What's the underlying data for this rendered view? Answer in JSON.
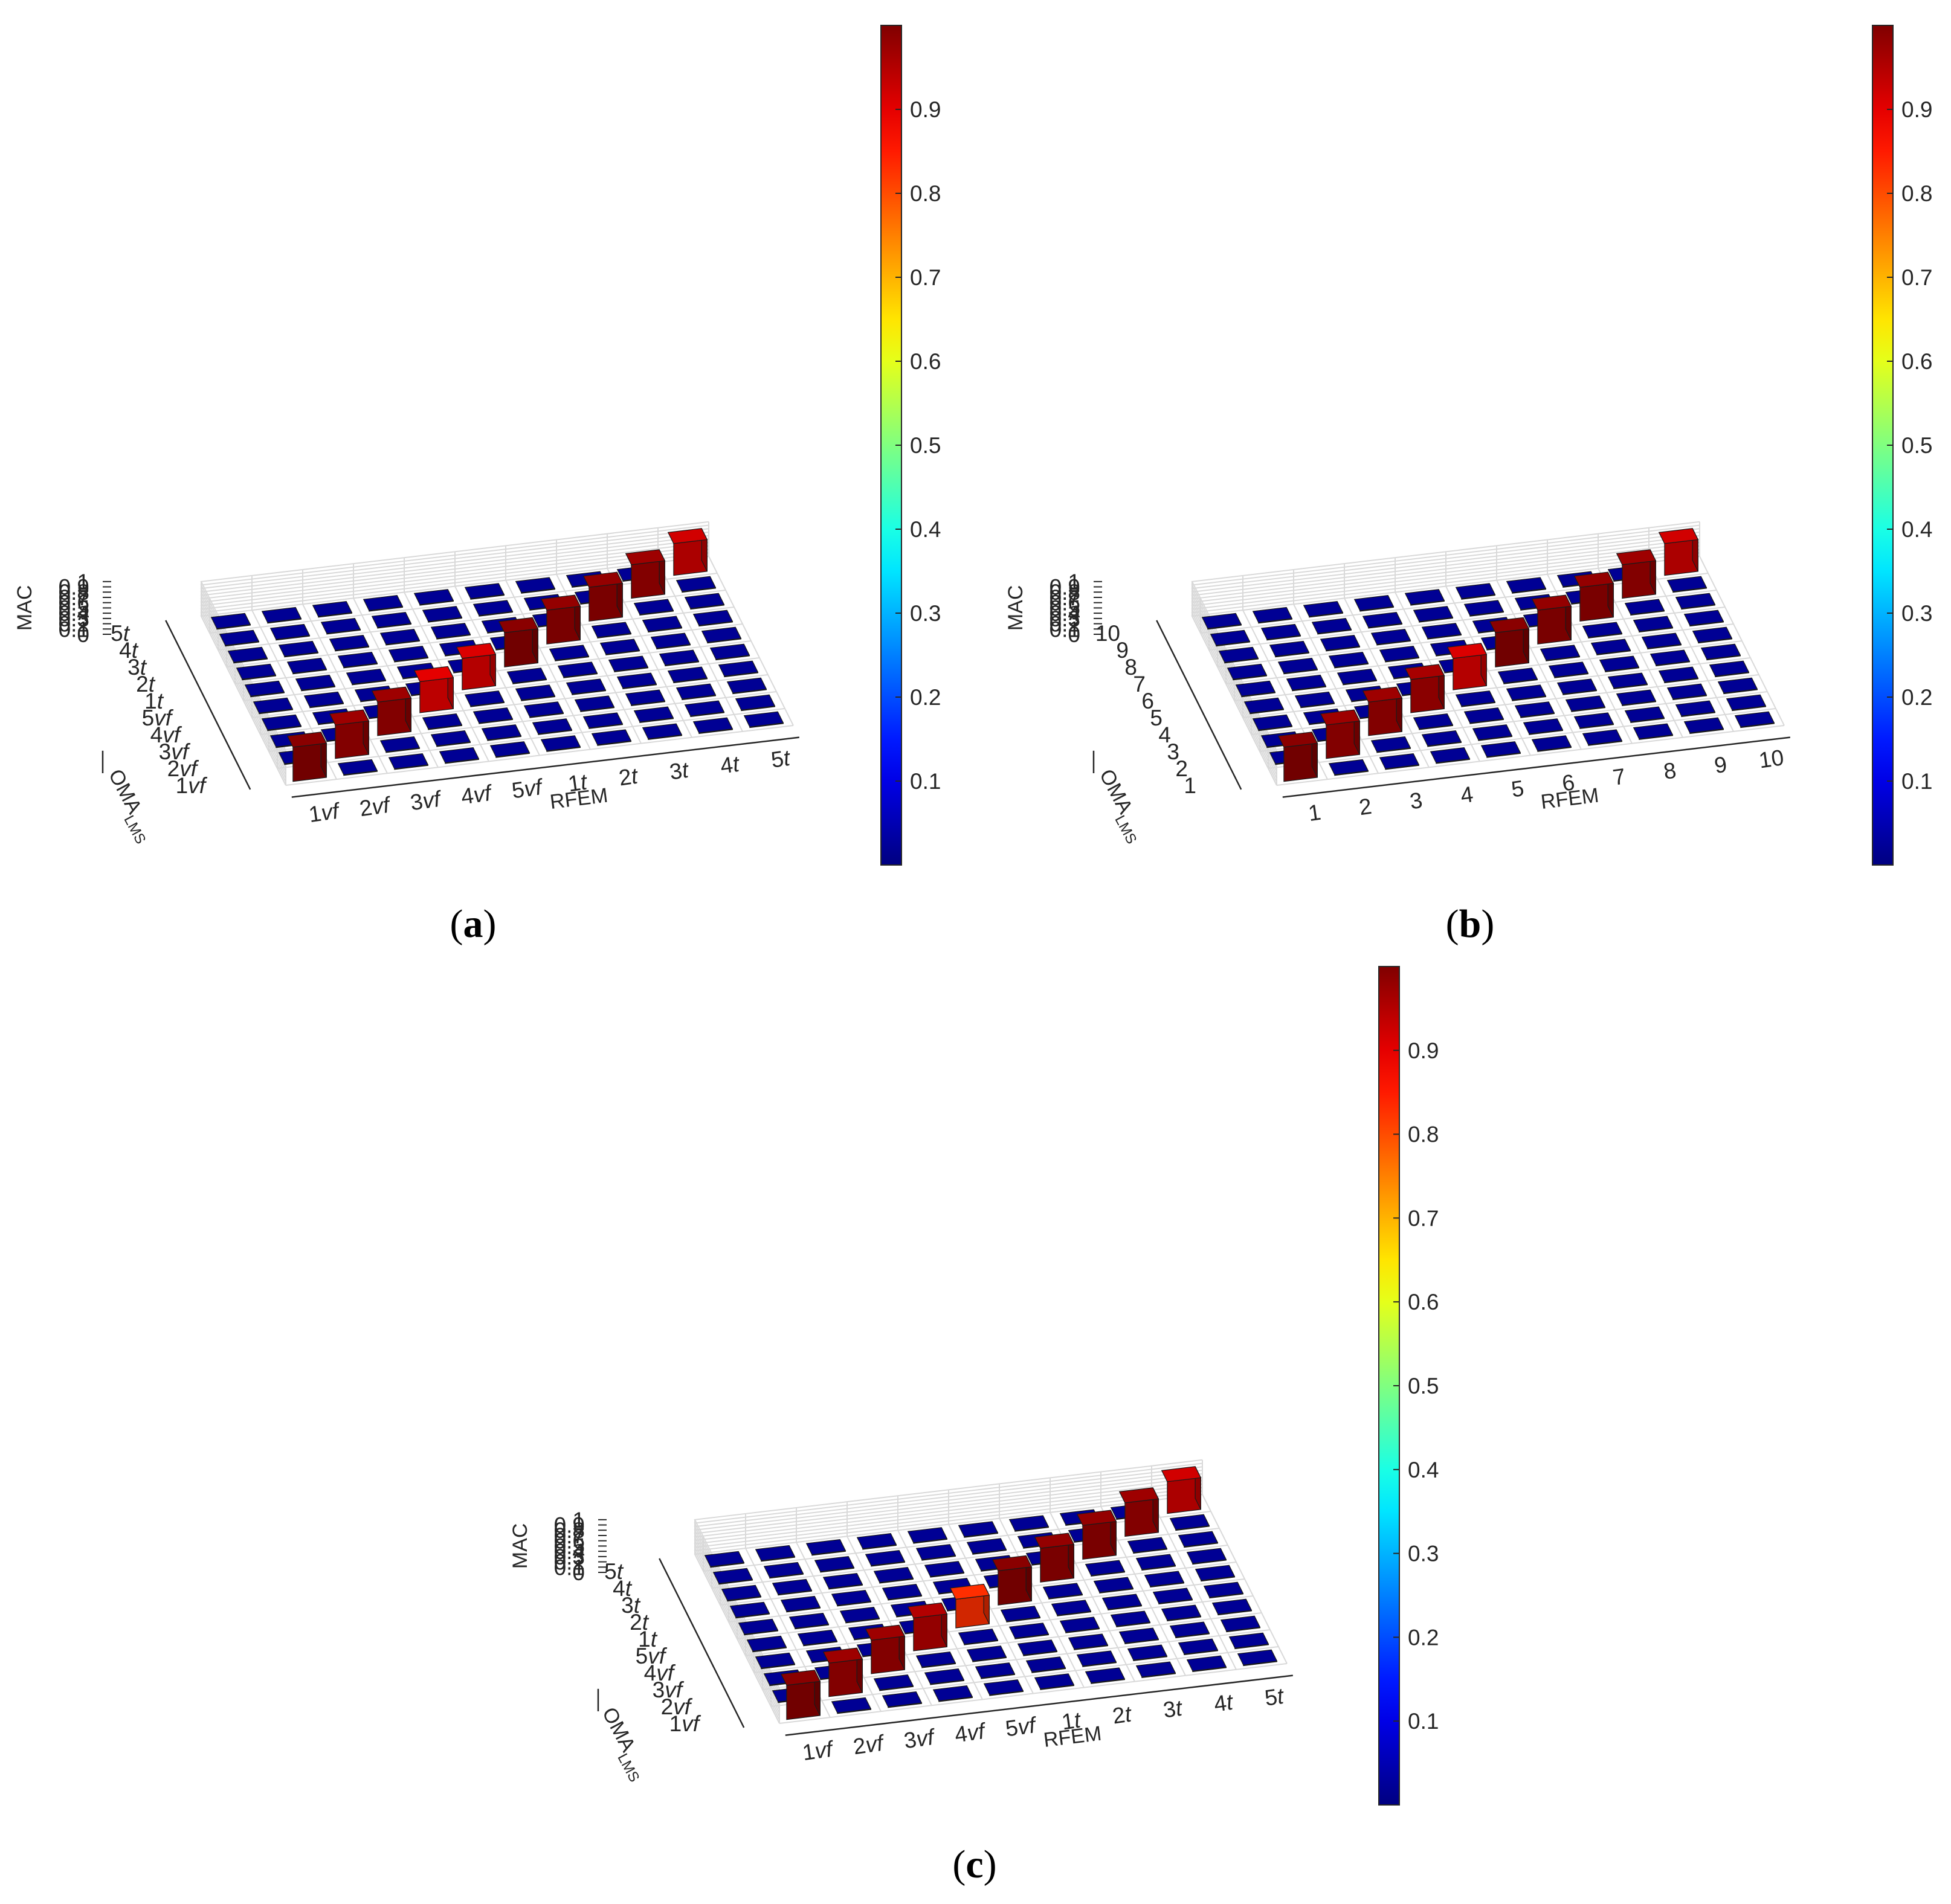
{
  "figure": {
    "colorbar": {
      "colormap": "jet",
      "range": [
        0,
        1
      ],
      "ticks": [
        "0.1",
        "0.2",
        "0.3",
        "0.4",
        "0.5",
        "0.6",
        "0.7",
        "0.8",
        "0.9"
      ]
    }
  },
  "chart_data": [
    {
      "type": "bar3d",
      "caption": "(a)",
      "zlabel": "MAC",
      "xlabel": "RFEM",
      "ylabel_main": "OMA",
      "ylabel_sub": "LMS",
      "zticks": [
        "0",
        "0.1",
        "0.2",
        "0.3",
        "0.4",
        "0.5",
        "0.6",
        "0.7",
        "0.8",
        "0.9",
        "1"
      ],
      "x_categories": [
        {
          "num": "1",
          "unit": "vf"
        },
        {
          "num": "2",
          "unit": "vf"
        },
        {
          "num": "3",
          "unit": "vf"
        },
        {
          "num": "4",
          "unit": "vf"
        },
        {
          "num": "5",
          "unit": "vf"
        },
        {
          "num": "1",
          "unit": "t"
        },
        {
          "num": "2",
          "unit": "t"
        },
        {
          "num": "3",
          "unit": "t"
        },
        {
          "num": "4",
          "unit": "t"
        },
        {
          "num": "5",
          "unit": "t"
        }
      ],
      "y_categories": [
        {
          "num": "1",
          "unit": "vf"
        },
        {
          "num": "2",
          "unit": "vf"
        },
        {
          "num": "3",
          "unit": "vf"
        },
        {
          "num": "4",
          "unit": "vf"
        },
        {
          "num": "5",
          "unit": "vf"
        },
        {
          "num": "1",
          "unit": "t"
        },
        {
          "num": "2",
          "unit": "t"
        },
        {
          "num": "3",
          "unit": "t"
        },
        {
          "num": "4",
          "unit": "t"
        },
        {
          "num": "5",
          "unit": "t"
        }
      ],
      "diagonal_values": [
        0.99,
        0.97,
        0.97,
        0.9,
        0.91,
        0.99,
        0.98,
        0.98,
        0.97,
        0.92
      ],
      "off_diagonal_value": 0.02
    },
    {
      "type": "bar3d",
      "caption": "(b)",
      "zlabel": "MAC",
      "xlabel": "RFEM",
      "ylabel_main": "OMA",
      "ylabel_sub": "LMS",
      "zticks": [
        "0",
        "0.1",
        "0.2",
        "0.3",
        "0.4",
        "0.5",
        "0.6",
        "0.7",
        "0.8",
        "0.9",
        "1"
      ],
      "x_categories": [
        {
          "num": "1",
          "unit": ""
        },
        {
          "num": "2",
          "unit": ""
        },
        {
          "num": "3",
          "unit": ""
        },
        {
          "num": "4",
          "unit": ""
        },
        {
          "num": "5",
          "unit": ""
        },
        {
          "num": "6",
          "unit": ""
        },
        {
          "num": "7",
          "unit": ""
        },
        {
          "num": "8",
          "unit": ""
        },
        {
          "num": "9",
          "unit": ""
        },
        {
          "num": "10",
          "unit": ""
        }
      ],
      "y_categories": [
        {
          "num": "1",
          "unit": ""
        },
        {
          "num": "2",
          "unit": ""
        },
        {
          "num": "3",
          "unit": ""
        },
        {
          "num": "4",
          "unit": ""
        },
        {
          "num": "5",
          "unit": ""
        },
        {
          "num": "6",
          "unit": ""
        },
        {
          "num": "7",
          "unit": ""
        },
        {
          "num": "8",
          "unit": ""
        },
        {
          "num": "9",
          "unit": ""
        },
        {
          "num": "10",
          "unit": ""
        }
      ],
      "diagonal_values": [
        0.99,
        0.97,
        0.97,
        0.96,
        0.91,
        0.99,
        0.98,
        0.98,
        0.97,
        0.92
      ],
      "off_diagonal_value": 0.02
    },
    {
      "type": "bar3d",
      "caption": "(c)",
      "zlabel": "MAC",
      "xlabel": "RFEM",
      "ylabel_main": "OMA",
      "ylabel_sub": "LMS",
      "zticks": [
        "0",
        "0.1",
        "0.2",
        "0.3",
        "0.4",
        "0.5",
        "0.6",
        "0.7",
        "0.8",
        "0.9",
        "1"
      ],
      "x_categories": [
        {
          "num": "1",
          "unit": "vf"
        },
        {
          "num": "2",
          "unit": "vf"
        },
        {
          "num": "3",
          "unit": "vf"
        },
        {
          "num": "4",
          "unit": "vf"
        },
        {
          "num": "5",
          "unit": "vf"
        },
        {
          "num": "1",
          "unit": "t"
        },
        {
          "num": "2",
          "unit": "t"
        },
        {
          "num": "3",
          "unit": "t"
        },
        {
          "num": "4",
          "unit": "t"
        },
        {
          "num": "5",
          "unit": "t"
        }
      ],
      "y_categories": [
        {
          "num": "1",
          "unit": "vf"
        },
        {
          "num": "2",
          "unit": "vf"
        },
        {
          "num": "3",
          "unit": "vf"
        },
        {
          "num": "4",
          "unit": "vf"
        },
        {
          "num": "5",
          "unit": "vf"
        },
        {
          "num": "1",
          "unit": "t"
        },
        {
          "num": "2",
          "unit": "t"
        },
        {
          "num": "3",
          "unit": "t"
        },
        {
          "num": "4",
          "unit": "t"
        },
        {
          "num": "5",
          "unit": "t"
        }
      ],
      "diagonal_values": [
        0.99,
        0.97,
        0.97,
        0.95,
        0.83,
        0.99,
        0.98,
        0.98,
        0.97,
        0.92
      ],
      "off_diagonal_value": 0.02
    }
  ]
}
